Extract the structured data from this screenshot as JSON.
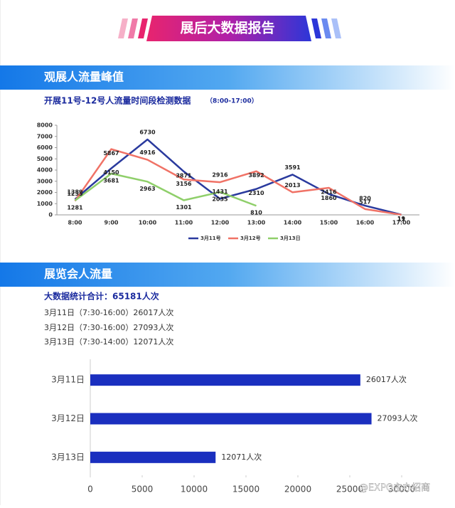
{
  "banner": "展后大数据报告",
  "section1": "观展人流量峰值",
  "section2": "展览会人流量",
  "summary": "大数据统计合计：65181人次",
  "details": [
    "3月11日（7:30-16:00）26017人次",
    "3月12日（7:30-16:00）27093人次",
    "3月13日（7:30-14:00）12071人次"
  ],
  "watermark": "@EXPO主办招商",
  "chart_data": [
    {
      "type": "line",
      "title": "开展11号-12号人流量时间段检测数据",
      "subtitle": "（8:00-17:00）",
      "categories": [
        "8:00",
        "9:00",
        "10:00",
        "11:00",
        "12:00",
        "13:00",
        "14:00",
        "15:00",
        "16:00",
        "17:00"
      ],
      "series": [
        {
          "name": "3月11号",
          "color": "#2a3a9e",
          "values": [
            1389,
            4150,
            6730,
            3871,
            1431,
            2310,
            3591,
            1860,
            820,
            19
          ]
        },
        {
          "name": "3月12号",
          "color": "#f07266",
          "values": [
            1235,
            5867,
            4916,
            3156,
            2916,
            3892,
            2013,
            2416,
            517,
            11
          ]
        },
        {
          "name": "3月13日",
          "color": "#8fcf6a",
          "values": [
            1281,
            3681,
            2963,
            1301,
            2035,
            810,
            null,
            null,
            null,
            null
          ]
        }
      ],
      "ylim": [
        0,
        8000
      ],
      "yticks": [
        0,
        1000,
        2000,
        3000,
        4000,
        5000,
        6000,
        7000,
        8000
      ],
      "legend": "bottom"
    },
    {
      "type": "hbar",
      "categories": [
        "3月11日",
        "3月12日",
        "3月13日"
      ],
      "values": [
        26017,
        27093,
        12071
      ],
      "value_labels": [
        "26017人次",
        "27093人次",
        "12071人次"
      ],
      "color": "#1a2fbf",
      "xlim": [
        0,
        30000
      ],
      "xticks": [
        0,
        5000,
        10000,
        15000,
        20000,
        25000,
        30000
      ]
    }
  ]
}
